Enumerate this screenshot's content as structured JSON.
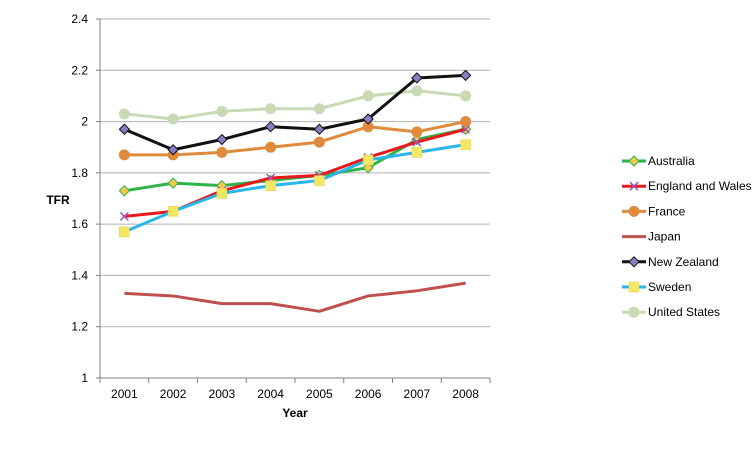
{
  "chart_data": {
    "type": "line",
    "title": "",
    "xlabel": "Year",
    "ylabel": "TFR",
    "ylim": [
      1,
      2.4
    ],
    "yticks": [
      "1",
      "1.2",
      "1.4",
      "1.6",
      "1.8",
      "2",
      "2.2",
      "2.4"
    ],
    "categories": [
      "2001",
      "2002",
      "2003",
      "2004",
      "2005",
      "2006",
      "2007",
      "2008"
    ],
    "grid": "horizontal",
    "legend_position": "right",
    "series": [
      {
        "name": "Australia",
        "color": "#2db34a",
        "marker": "diamond",
        "marker_fill": "#f2c94c",
        "values": [
          1.73,
          1.76,
          1.75,
          1.77,
          1.79,
          1.82,
          1.93,
          1.97
        ]
      },
      {
        "name": "England and Wales",
        "color": "#e8191c",
        "marker": "x",
        "marker_fill": "#9b59b6",
        "values": [
          1.63,
          1.65,
          1.73,
          1.78,
          1.79,
          1.86,
          1.92,
          1.97
        ]
      },
      {
        "name": "France",
        "color": "#e08a3c",
        "marker": "circle",
        "marker_fill": "#e08a3c",
        "values": [
          1.87,
          1.87,
          1.88,
          1.9,
          1.92,
          1.98,
          1.96,
          2.0
        ]
      },
      {
        "name": "Japan",
        "color": "#c0504d",
        "marker": "none",
        "marker_fill": "#c0504d",
        "values": [
          1.33,
          1.32,
          1.29,
          1.29,
          1.26,
          1.32,
          1.34,
          1.37
        ]
      },
      {
        "name": "New Zealand",
        "color": "#111111",
        "marker": "diamond",
        "marker_fill": "#8e7cc3",
        "values": [
          1.97,
          1.89,
          1.93,
          1.98,
          1.97,
          2.01,
          2.17,
          2.18
        ]
      },
      {
        "name": "Sweden",
        "color": "#29b6e8",
        "marker": "square",
        "marker_fill": "#f5e663",
        "values": [
          1.57,
          1.65,
          1.72,
          1.75,
          1.77,
          1.85,
          1.88,
          1.91
        ]
      },
      {
        "name": "United States",
        "color": "#c8d9b4",
        "marker": "circle",
        "marker_fill": "#c8d9b4",
        "values": [
          2.03,
          2.01,
          2.04,
          2.05,
          2.05,
          2.1,
          2.12,
          2.1
        ]
      }
    ]
  }
}
